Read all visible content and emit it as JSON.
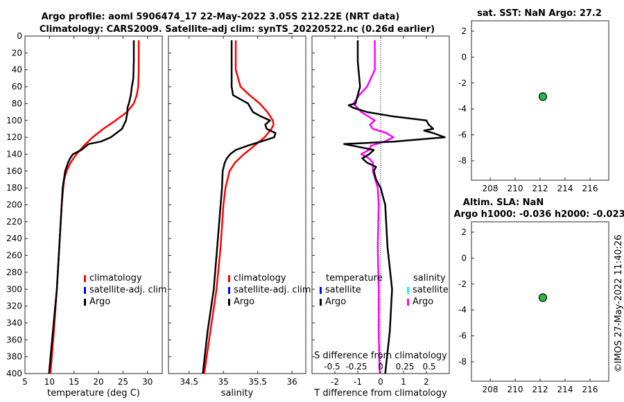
{
  "figure": {
    "title_line1": "Argo profile: aoml 5906474_17 22-May-2022 3.05S 212.22E (NRT data)",
    "title_line2": "Climatology: CARS2009. Satellite-adj clim: synTS_20220522.nc (0.26d earlier)",
    "credit": "©IMOS 27-May-2022 11:40:26"
  },
  "colors": {
    "climatology": "#ff0000",
    "satellite": "#0000ff",
    "satellite_salinity": "#00ffff",
    "argo": "#000000",
    "argo_salinity_diff": "#ff00ff",
    "marker": "#22bb44"
  },
  "chart_data": [
    {
      "id": "temperature",
      "type": "line",
      "xlabel": "temperature (deg C)",
      "xlim": [
        5,
        33
      ],
      "ylim": [
        0,
        400
      ],
      "y_reversed": true,
      "xticks": [
        5,
        10,
        15,
        20,
        25,
        30
      ],
      "yticks": [
        0,
        20,
        40,
        60,
        80,
        100,
        120,
        140,
        160,
        180,
        200,
        220,
        240,
        260,
        280,
        300,
        320,
        340,
        360,
        380,
        400
      ],
      "legend": [
        "climatology",
        "satellite-adj. clim",
        "Argo"
      ],
      "series": [
        {
          "name": "climatology",
          "depth": [
            5,
            20,
            40,
            60,
            70,
            80,
            90,
            100,
            110,
            120,
            130,
            140,
            150,
            160,
            170,
            180,
            200,
            250,
            300,
            350,
            400
          ],
          "values": [
            28.2,
            28.2,
            28.2,
            28.1,
            27.8,
            27.2,
            25.8,
            23.5,
            21.0,
            18.8,
            17.0,
            15.5,
            14.3,
            13.5,
            13.0,
            12.8,
            12.5,
            12.0,
            11.5,
            10.9,
            10.2
          ]
        },
        {
          "name": "Argo",
          "depth": [
            5,
            30,
            50,
            60,
            70,
            80,
            85,
            90,
            100,
            110,
            120,
            125,
            128,
            135,
            140,
            145,
            150,
            160,
            180,
            200,
            250,
            300,
            350,
            400
          ],
          "values": [
            27.2,
            27.2,
            27.1,
            26.8,
            26.6,
            26.2,
            25.9,
            25.9,
            25.6,
            24.8,
            22.5,
            20.5,
            18.0,
            16.5,
            14.8,
            14.2,
            13.8,
            13.2,
            12.7,
            12.5,
            12.0,
            11.5,
            10.7,
            9.9
          ]
        }
      ]
    },
    {
      "id": "salinity",
      "type": "line",
      "xlabel": "salinity",
      "xlim": [
        34.2,
        36.2
      ],
      "ylim": [
        0,
        400
      ],
      "y_reversed": true,
      "xticks": [
        34.5,
        35,
        35.5,
        36
      ],
      "legend": [
        "climatology",
        "satellite-adj. clim",
        "Argo"
      ],
      "series": [
        {
          "name": "climatology",
          "depth": [
            5,
            40,
            60,
            70,
            80,
            90,
            100,
            105,
            110,
            120,
            130,
            140,
            150,
            160,
            180,
            200,
            250,
            300,
            350,
            400
          ],
          "values": [
            35.18,
            35.18,
            35.25,
            35.38,
            35.53,
            35.64,
            35.72,
            35.73,
            35.7,
            35.6,
            35.45,
            35.3,
            35.17,
            35.09,
            35.03,
            35.0,
            34.96,
            34.9,
            34.81,
            34.72
          ]
        },
        {
          "name": "Argo",
          "depth": [
            5,
            40,
            60,
            70,
            75,
            80,
            90,
            95,
            100,
            105,
            110,
            115,
            120,
            125,
            130,
            135,
            140,
            145,
            150,
            160,
            180,
            200,
            250,
            300,
            350,
            400
          ],
          "values": [
            35.12,
            35.12,
            35.12,
            35.14,
            35.25,
            35.36,
            35.43,
            35.54,
            35.68,
            35.61,
            35.63,
            35.76,
            35.74,
            35.55,
            35.35,
            35.18,
            35.1,
            35.05,
            35.02,
            34.99,
            34.98,
            34.96,
            34.91,
            34.86,
            34.77,
            34.7
          ]
        }
      ]
    },
    {
      "id": "difference",
      "type": "line",
      "xlabel": "T difference from climatology",
      "top_axis_label": "S difference from climatology",
      "xlim": [
        -3,
        3
      ],
      "ylim": [
        0,
        400
      ],
      "y_reversed": true,
      "xticks": [
        -2,
        -1,
        0,
        1,
        2
      ],
      "top_ticks": [
        "-0.5",
        "-0.25",
        "0",
        "0.25",
        "0.5"
      ],
      "top_tick_values": [
        -0.5,
        -0.25,
        0,
        0.25,
        0.5
      ],
      "legend_temperature_title": "temperature",
      "legend_salinity_title": "salinity",
      "legend_temperature": [
        "satellite",
        "Argo"
      ],
      "legend_salinity": [
        "satellite",
        "Argo"
      ],
      "series": [
        {
          "name": "T difference Argo",
          "depth": [
            5,
            30,
            60,
            70,
            80,
            82,
            85,
            90,
            95,
            100,
            105,
            110,
            112,
            115,
            120,
            125,
            128,
            130,
            135,
            140,
            145,
            150,
            155,
            160,
            170,
            180,
            200,
            250,
            300,
            350,
            400
          ],
          "values": [
            -1.0,
            -1.0,
            -0.9,
            -1.0,
            -1.1,
            -1.4,
            -1.2,
            -0.6,
            0.5,
            2.0,
            2.1,
            2.3,
            1.9,
            2.3,
            2.8,
            0.6,
            -1.6,
            -1.2,
            -0.3,
            -0.5,
            -0.8,
            -0.6,
            -0.2,
            -0.3,
            -0.2,
            0.0,
            0.2,
            0.3,
            0.5,
            0.4,
            0.2
          ]
        },
        {
          "name": "S difference Argo",
          "depth": [
            5,
            40,
            60,
            70,
            80,
            90,
            100,
            105,
            110,
            115,
            120,
            125,
            130,
            135,
            140,
            145,
            150,
            160,
            180,
            200,
            250,
            300,
            350,
            400
          ],
          "values": [
            -0.06,
            -0.06,
            -0.14,
            -0.22,
            -0.28,
            -0.2,
            -0.06,
            -0.11,
            -0.08,
            0.06,
            0.13,
            0.04,
            -0.1,
            -0.12,
            -0.2,
            -0.12,
            -0.08,
            -0.08,
            -0.03,
            -0.02,
            -0.03,
            -0.02,
            -0.02,
            -0.01
          ]
        }
      ]
    },
    {
      "id": "sst_map",
      "type": "scatter",
      "title": "sat. SST: NaN Argo: 27.2",
      "xlim": [
        206.5,
        217.5
      ],
      "ylim": [
        -9.5,
        2.8
      ],
      "xticks": [
        208,
        210,
        212,
        214,
        216
      ],
      "yticks": [
        2,
        0,
        -2,
        -4,
        -6,
        -8
      ],
      "points": [
        {
          "x": 212.22,
          "y": -3.05
        }
      ]
    },
    {
      "id": "sla_map",
      "type": "scatter",
      "title_line1": "Altim. SLA: NaN",
      "title_line2": "Argo h1000: -0.036 h2000: -0.023",
      "xlim": [
        206.5,
        217.5
      ],
      "ylim": [
        -9.5,
        2.8
      ],
      "xticks": [
        208,
        210,
        212,
        214,
        216
      ],
      "yticks": [
        2,
        0,
        -2,
        -4,
        -6,
        -8
      ],
      "points": [
        {
          "x": 212.22,
          "y": -3.05
        }
      ]
    }
  ]
}
